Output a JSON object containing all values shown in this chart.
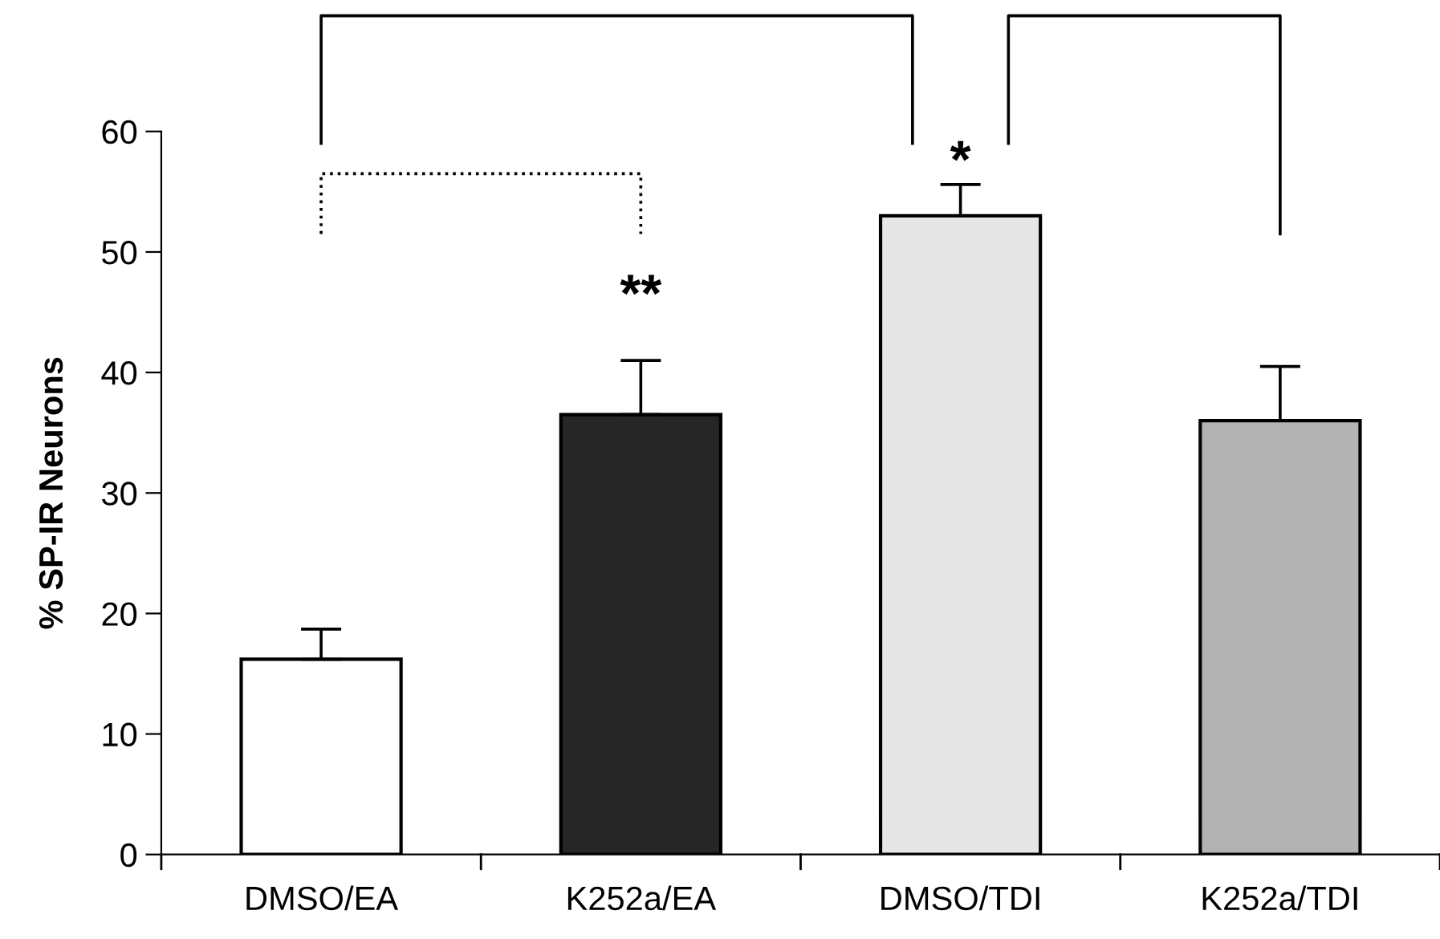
{
  "chart_data": {
    "type": "bar",
    "ylabel": "% SP-IR Neurons",
    "categories": [
      "DMSO/EA",
      "K252a/EA",
      "DMSO/TDI",
      "K252a/TDI"
    ],
    "values": [
      16.2,
      36.5,
      53.0,
      36.0
    ],
    "errors": [
      [
        16.2,
        18.7
      ],
      [
        36.5,
        41.0
      ],
      [
        53.0,
        55.6
      ],
      [
        36.0,
        40.5
      ]
    ],
    "colors": [
      "#ffffff",
      "#262626",
      "#e6e6e6",
      "#b3b3b3"
    ],
    "ylim": [
      0,
      60
    ],
    "yticks": [
      0,
      10,
      20,
      30,
      40,
      50,
      60
    ],
    "grid": false,
    "annotations": [
      "**",
      "*"
    ]
  }
}
